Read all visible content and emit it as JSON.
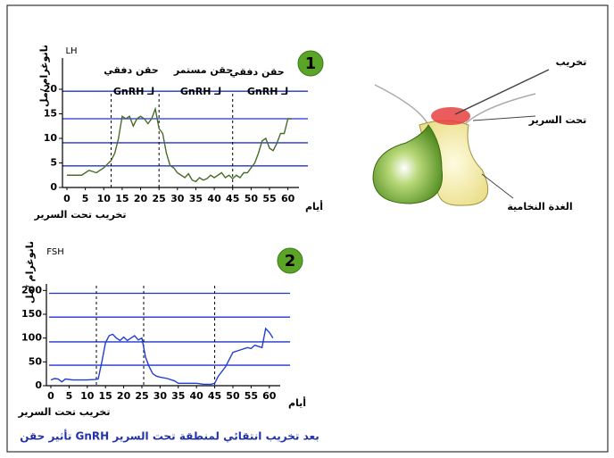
{
  "chart_data": [
    {
      "type": "line",
      "title": "LH",
      "y_label": "نانوغرام /مل",
      "x_label": "أيام",
      "note": "تخريب تحت السرير",
      "badge": "1",
      "annotations": [
        "حقن دفقي",
        "حقن مستمر",
        "حقن دفقي",
        "لـ GnRH",
        "لـ GnRH",
        "لـ GnRH"
      ],
      "x": [
        0,
        2,
        4,
        6,
        8,
        10,
        12,
        13,
        14,
        15,
        16,
        17,
        18,
        19,
        20,
        21,
        22,
        23,
        24,
        25,
        26,
        27,
        28,
        29,
        30,
        31,
        32,
        33,
        34,
        35,
        36,
        37,
        38,
        39,
        40,
        41,
        42,
        43,
        44,
        45,
        46,
        47,
        48,
        49,
        50,
        51,
        52,
        53,
        54,
        55,
        56,
        57,
        58,
        59,
        60,
        61
      ],
      "series": [
        {
          "color": "#4a6b2a",
          "values": [
            2.5,
            2.5,
            2.5,
            3.5,
            3,
            4,
            5.5,
            7,
            10,
            14.5,
            14,
            14.5,
            12.5,
            14,
            14.5,
            14,
            13,
            14,
            16,
            12,
            11,
            7,
            4.5,
            4,
            3,
            2.5,
            2,
            2.8,
            1.5,
            1.2,
            2,
            1.5,
            1.8,
            2.5,
            2,
            2.5,
            3,
            2,
            2.5,
            1.8,
            2.5,
            2,
            3,
            3,
            4,
            5,
            7,
            9.5,
            10,
            8,
            7.5,
            9,
            11,
            11,
            14,
            14
          ]
        }
      ],
      "xlim": [
        0,
        63
      ],
      "ylim": [
        0,
        26
      ],
      "xticks": [
        0,
        5,
        10,
        15,
        20,
        25,
        30,
        35,
        40,
        45,
        50,
        55,
        60
      ],
      "yticks": [
        0,
        5,
        10,
        15,
        20
      ],
      "vlines": [
        12,
        25,
        45
      ],
      "hlines": [
        19.6,
        14,
        9.1,
        4.4
      ],
      "hline_color": "#2233cc"
    },
    {
      "type": "line",
      "title": "FSH",
      "y_label": "نانوغرام /مل",
      "x_label": "أيام",
      "note": "تخريب تحت السرير",
      "badge": "2",
      "annotations": [],
      "x": [
        0,
        1,
        2,
        3,
        4,
        6,
        8,
        10,
        12,
        13,
        14,
        15,
        16,
        17,
        18,
        19,
        20,
        21,
        22,
        23,
        24,
        25,
        26,
        27,
        28,
        29,
        30,
        32,
        34,
        35,
        38,
        40,
        42,
        44,
        45,
        46,
        48,
        50,
        52,
        54,
        55,
        56,
        58,
        59,
        60,
        61
      ],
      "series": [
        {
          "color": "#1f3fd1",
          "values": [
            12,
            15,
            14,
            8,
            14,
            12,
            12,
            12,
            13,
            14,
            50,
            90,
            105,
            108,
            100,
            95,
            102,
            95,
            100,
            105,
            96,
            100,
            60,
            40,
            25,
            20,
            18,
            15,
            10,
            5,
            5,
            5,
            3,
            3,
            5,
            20,
            40,
            70,
            75,
            80,
            78,
            85,
            80,
            120,
            112,
            100
          ]
        }
      ],
      "xlim": [
        0,
        63
      ],
      "ylim": [
        0,
        210
      ],
      "xticks": [
        0,
        5,
        10,
        15,
        20,
        25,
        30,
        35,
        40,
        45,
        50,
        55,
        60
      ],
      "yticks": [
        0,
        50,
        100,
        150,
        200
      ],
      "vlines": [
        12.5,
        25.5,
        45
      ],
      "hlines": [
        194,
        144,
        92,
        43
      ],
      "hline_color": "#2233cc"
    }
  ],
  "illustration": {
    "lesion": "تخريب",
    "hypothalamus": "تحت السرير",
    "pituitary": "الغدة النخامية"
  },
  "caption": "تأثير حقن GnRH بعد تخريب انتقائي لمنطقة تحت السرير"
}
